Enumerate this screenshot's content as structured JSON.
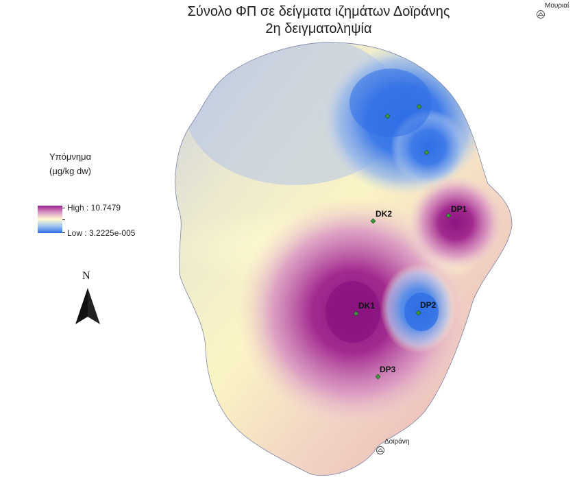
{
  "title": {
    "line1": "Σύνολο ΦΠ σε δείγματα ιζημάτων Δοϊράνης",
    "line2": "2η δειγματοληψία"
  },
  "legend": {
    "heading": "Υπόμνημα",
    "unit": "(μg/kg dw)",
    "high_label": "High : 10.7479",
    "low_label": "Low : 3.2225e-005",
    "high_value": 10.7479,
    "low_value": 3.2225e-05,
    "ramp_colors": [
      "#9b1f8a",
      "#d99ac8",
      "#fffbd0",
      "#9fc4ee",
      "#2f6fe6"
    ]
  },
  "north_arrow": {
    "label": "N"
  },
  "samples": [
    {
      "id": "DP1"
    },
    {
      "id": "DK2"
    },
    {
      "id": "DK1"
    },
    {
      "id": "DP2"
    },
    {
      "id": "DP3"
    }
  ],
  "unlabeled_samples": 3,
  "towns": [
    {
      "name": "Μουριαί"
    },
    {
      "name": "Δοϊράνη"
    }
  ],
  "colors": {
    "high": "#9b1f8a",
    "mid": "#fffbd0",
    "low": "#2f6fe6",
    "point_fill": "#3a9a3a"
  }
}
